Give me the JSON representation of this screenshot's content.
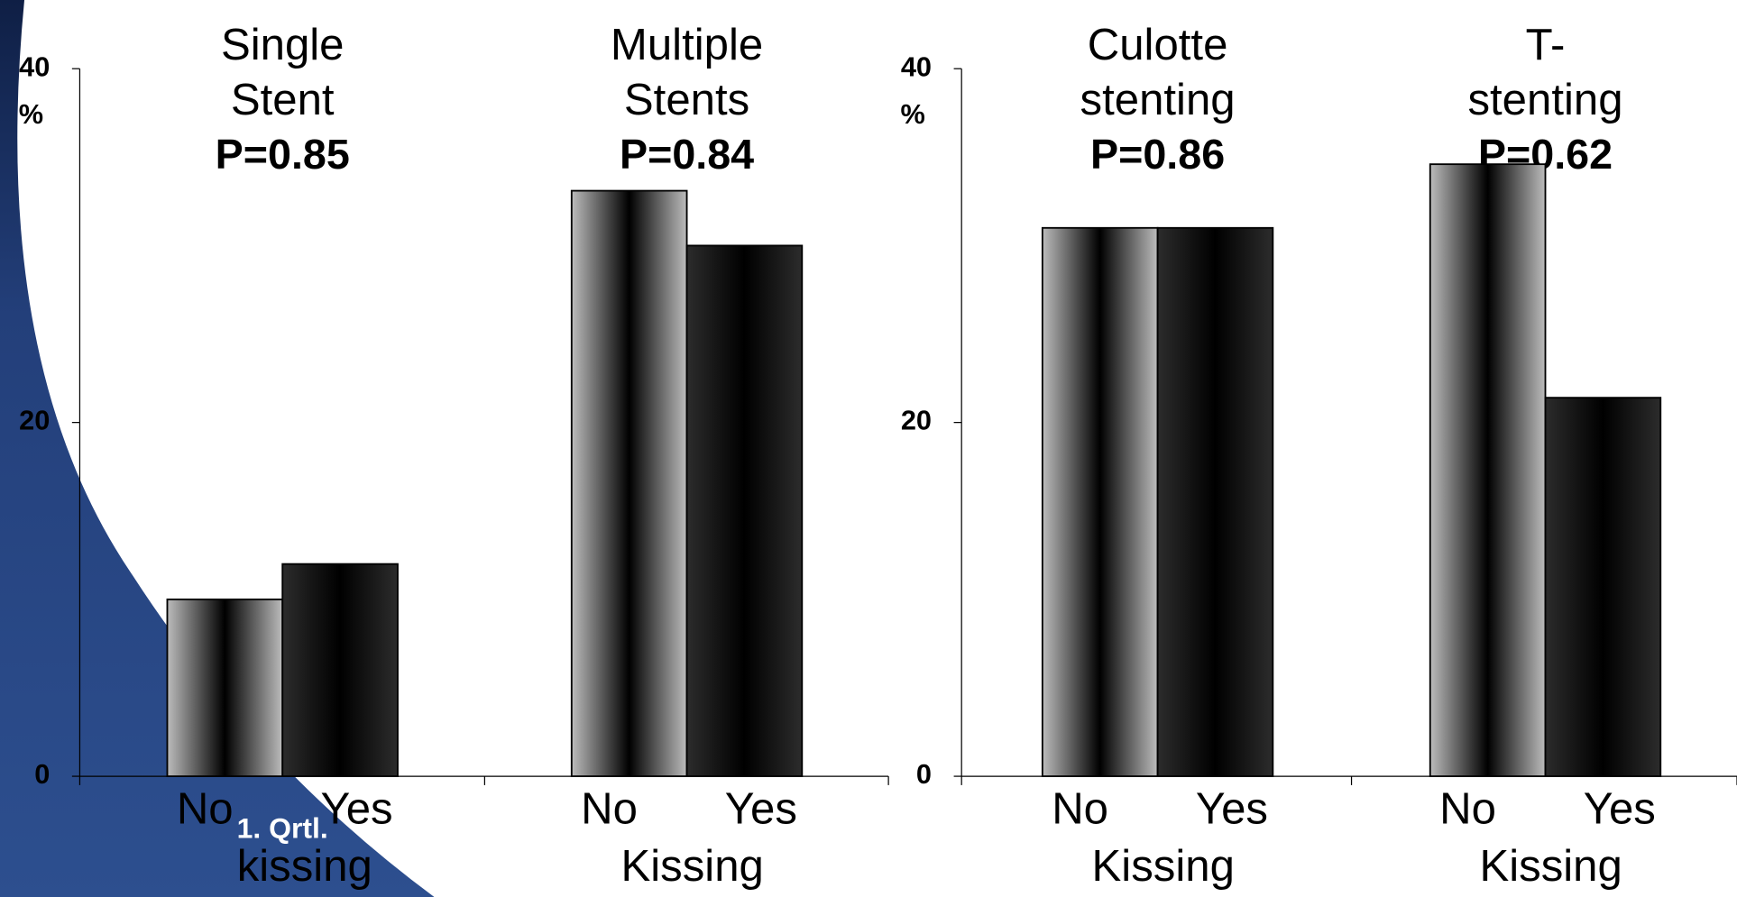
{
  "chart_data": [
    {
      "type": "bar",
      "ylim": [
        0,
        40
      ],
      "yticks": [
        0,
        20,
        40
      ],
      "y_label": "%",
      "colors": [
        "#bcbcbc",
        "#2c2c2c"
      ],
      "groups": [
        {
          "title": [
            "Single",
            "Stent"
          ],
          "p_value": "P=0.85",
          "categories": [
            "No",
            "Yes"
          ],
          "values": [
            10,
            12
          ],
          "xlabel": "kissing"
        },
        {
          "title": [
            "Multiple",
            "Stents"
          ],
          "p_value": "P=0.84",
          "categories": [
            "No",
            "Yes"
          ],
          "values": [
            33.1,
            30
          ],
          "xlabel": "Kissing"
        }
      ]
    },
    {
      "type": "bar",
      "ylim": [
        0,
        40
      ],
      "yticks": [
        0,
        20,
        40
      ],
      "y_label": "%",
      "colors": [
        "#bcbcbc",
        "#2c2c2c"
      ],
      "groups": [
        {
          "title": [
            "Culotte",
            "stenting"
          ],
          "p_value": "P=0.86",
          "categories": [
            "No",
            "Yes"
          ],
          "values": [
            31,
            31
          ],
          "xlabel": "Kissing"
        },
        {
          "title": [
            "T-",
            "stenting"
          ],
          "p_value": "P=0.62",
          "categories": [
            "No",
            "Yes"
          ],
          "values": [
            34.6,
            21.4
          ],
          "xlabel": "Kissing"
        }
      ]
    }
  ],
  "overlay_text": "1. Qrtl."
}
